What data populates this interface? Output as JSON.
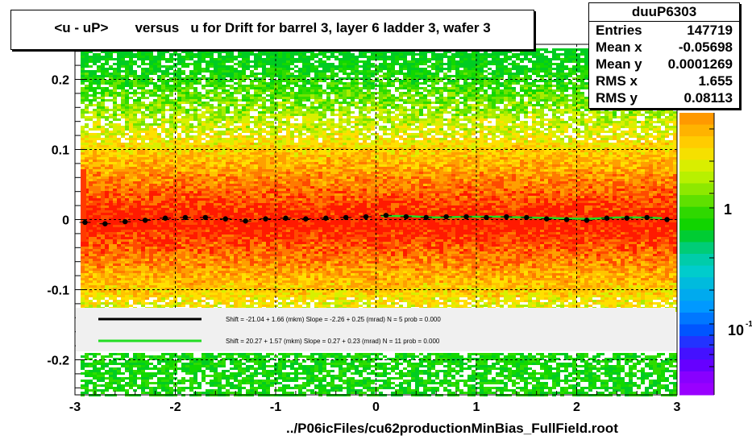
{
  "title": "<u - uP>       versus   u for Drift for barrel 3, layer 6 ladder 3, wafer 3",
  "stats": {
    "name": "duuP6303",
    "rows": [
      {
        "label": "Entries",
        "value": "147719"
      },
      {
        "label": "Mean x",
        "value": "-0.05698"
      },
      {
        "label": "Mean y",
        "value": "0.0001269"
      },
      {
        "label": "RMS x",
        "value": "1.655"
      },
      {
        "label": "RMS y",
        "value": "0.08113"
      }
    ]
  },
  "footer": "../P06icFiles/cu62productionMinBias_FullField.root",
  "colorbar": {
    "labels": [
      "1",
      "10"
    ],
    "exponent": "-1"
  },
  "chart_data": {
    "type": "heatmap",
    "title": "<u - uP>       versus   u for Drift for barrel 3, layer 6 ladder 3, wafer 3",
    "xlim": [
      -3,
      3
    ],
    "ylim": [
      -0.25,
      0.25
    ],
    "x_ticks": [
      "-3",
      "-2",
      "-1",
      "0",
      "1",
      "2",
      "3"
    ],
    "y_ticks": [
      "-0.2",
      "-0.1",
      "0",
      "0.1",
      "0.2"
    ],
    "grid": true,
    "colorscale": "log",
    "legend": [
      {
        "name": "Shift =   -21.04 + 1.66 (mkm) Slope =    -2.26 + 0.25 (mrad)  N = 5 prob = 0.000",
        "color": "#000000"
      },
      {
        "name": "Shift =    20.27 + 1.57 (mkm) Slope =     0.27 + 0.23 (mrad)  N = 11 prob = 0.000",
        "color": "#22dd22"
      }
    ],
    "series": [
      {
        "name": "profile",
        "color": "#000000",
        "x": [
          -2.9,
          -2.7,
          -2.5,
          -2.3,
          -2.1,
          -1.9,
          -1.7,
          -1.5,
          -1.3,
          -1.1,
          -0.9,
          -0.7,
          -0.5,
          -0.3,
          -0.1,
          0.1,
          0.3,
          0.5,
          0.7,
          0.9,
          1.1,
          1.3,
          1.5,
          1.7,
          1.9,
          2.1,
          2.3,
          2.5,
          2.7,
          2.9
        ],
        "y": [
          -0.004,
          -0.006,
          -0.003,
          -0.001,
          0.002,
          0.003,
          0.003,
          0.001,
          -0.002,
          0.001,
          0.002,
          0.001,
          0.002,
          0.003,
          0.004,
          0.006,
          0.004,
          0.003,
          0.004,
          0.004,
          0.003,
          0.004,
          0.003,
          0.001,
          0.0,
          -0.001,
          0.002,
          0.002,
          0.003,
          0.0
        ]
      },
      {
        "name": "fit",
        "color": "#22dd22",
        "x": [
          0.05,
          0.3,
          0.6,
          0.9,
          1.2,
          1.5,
          1.8,
          2.1,
          2.4,
          2.7,
          2.85
        ],
        "y": [
          0.005,
          0.005,
          0.003,
          0.004,
          0.004,
          0.003,
          0.002,
          0.001,
          0.003,
          0.003,
          0.002
        ]
      }
    ]
  }
}
